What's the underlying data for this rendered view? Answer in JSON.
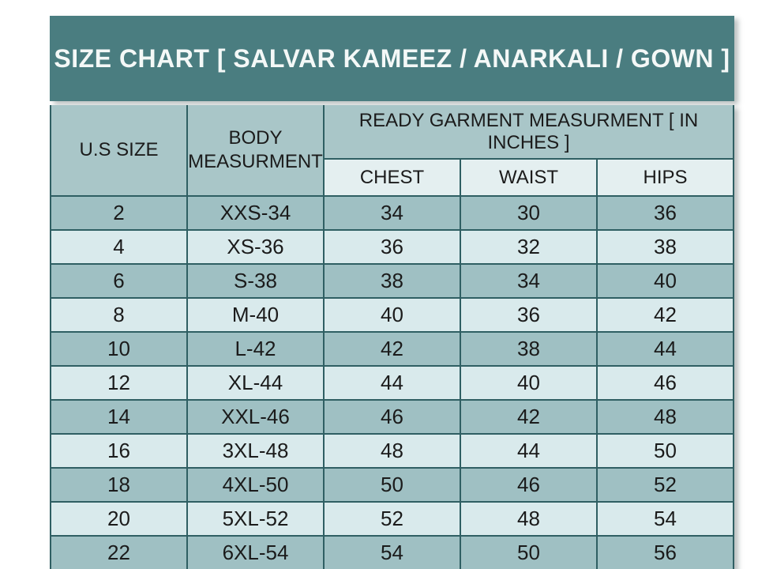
{
  "title": "SIZE CHART [ SALVAR KAMEEZ / ANARKALI / GOWN ]",
  "colors": {
    "band_teal": "#4a7d80",
    "title_text": "#f4f8f7",
    "header_cell_bg": "#a9c6c8",
    "subheader_cell_bg": "#e4eff0",
    "row_dark_bg": "#9fc0c3",
    "row_light_bg": "#d9eaec",
    "grid_line": "#2f5f63",
    "cell_text": "#1b1b1b",
    "page_bg": "#ffffff"
  },
  "chart_data": {
    "type": "table",
    "title": "SIZE CHART [ SALVAR KAMEEZ / ANARKALI / GOWN ]",
    "column_group": "READY GARMENT MEASURMENT [ IN INCHES ]",
    "columns": [
      "U.S SIZE",
      "BODY MEASURMENT",
      "CHEST",
      "WAIST",
      "HIPS"
    ],
    "rows": [
      [
        "2",
        "XXS-34",
        "34",
        "30",
        "36"
      ],
      [
        "4",
        "XS-36",
        "36",
        "32",
        "38"
      ],
      [
        "6",
        "S-38",
        "38",
        "34",
        "40"
      ],
      [
        "8",
        "M-40",
        "40",
        "36",
        "42"
      ],
      [
        "10",
        "L-42",
        "42",
        "38",
        "44"
      ],
      [
        "12",
        "XL-44",
        "44",
        "40",
        "46"
      ],
      [
        "14",
        "XXL-46",
        "46",
        "42",
        "48"
      ],
      [
        "16",
        "3XL-48",
        "48",
        "44",
        "50"
      ],
      [
        "18",
        "4XL-50",
        "50",
        "46",
        "52"
      ],
      [
        "20",
        "5XL-52",
        "52",
        "48",
        "54"
      ],
      [
        "22",
        "6XL-54",
        "54",
        "50",
        "56"
      ]
    ]
  }
}
